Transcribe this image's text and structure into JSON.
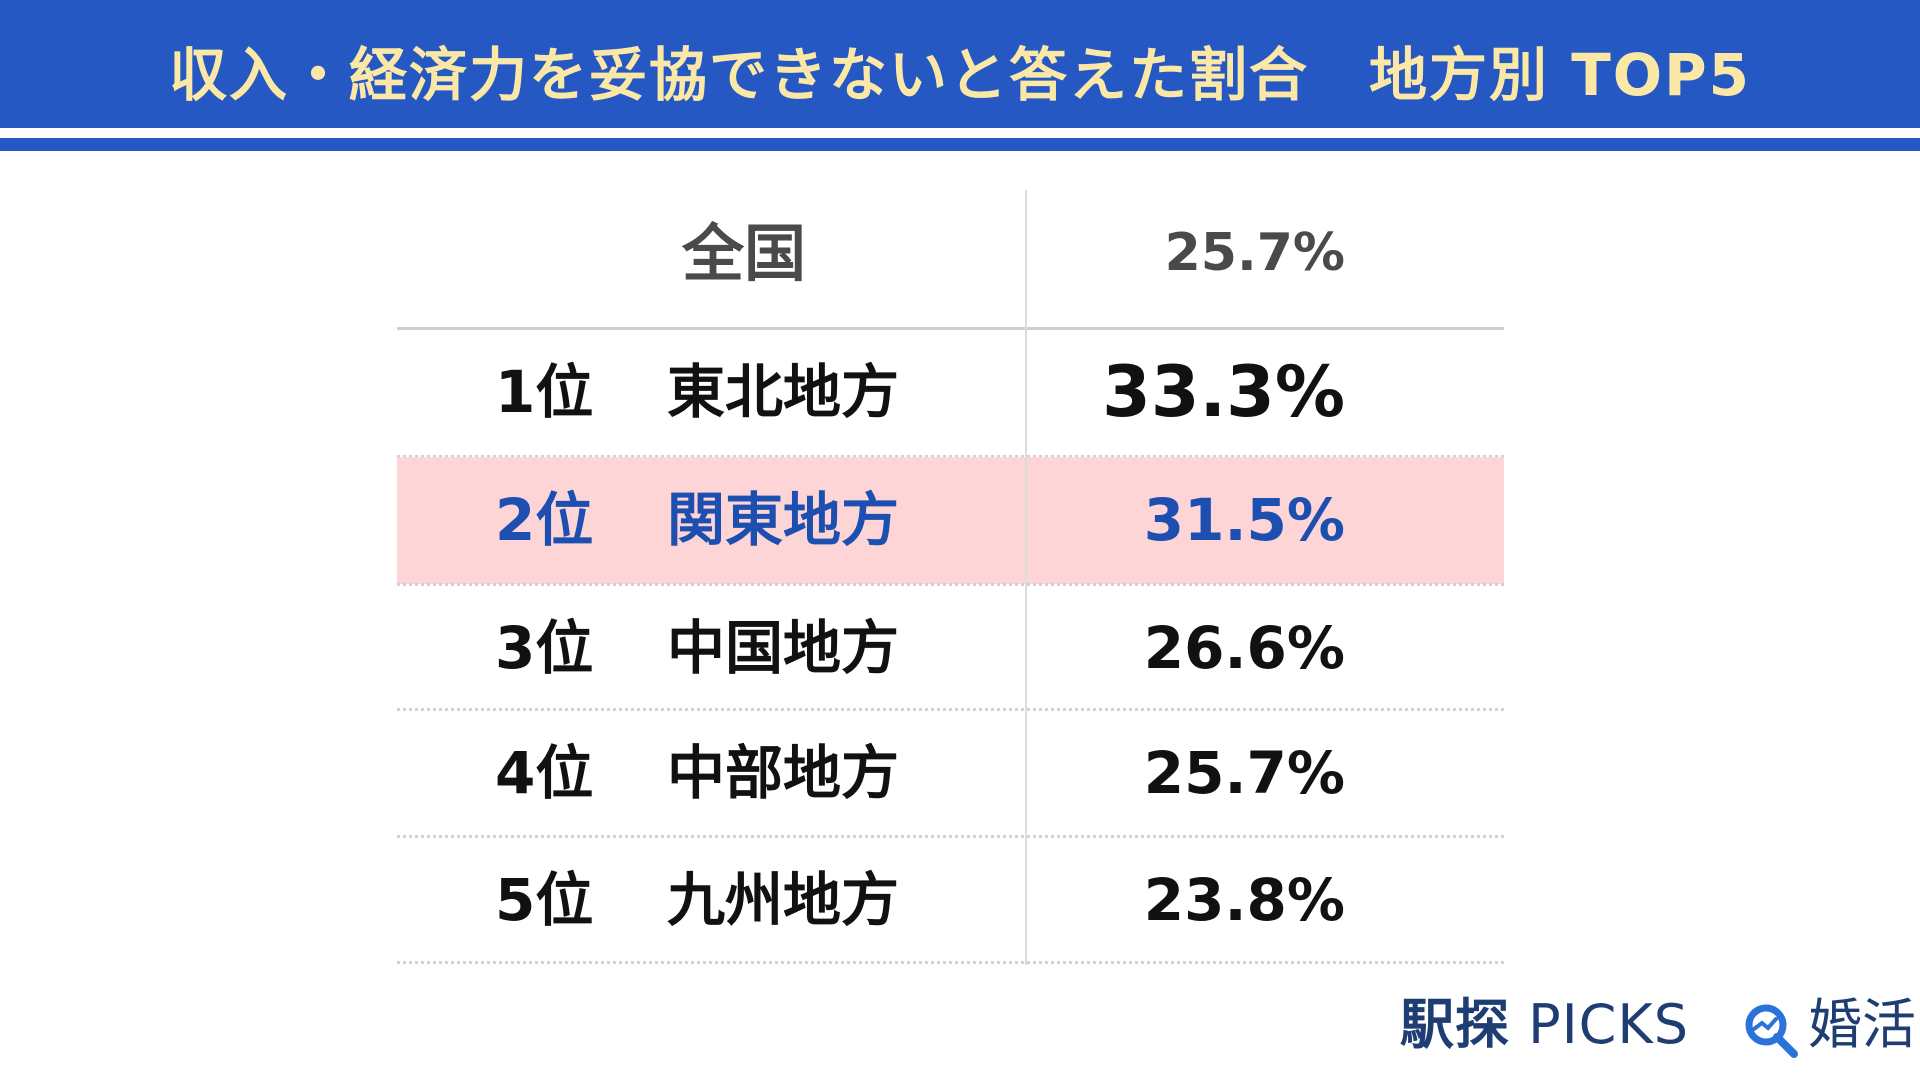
{
  "header": {
    "title": "収入・経済力を妥協できないと答えた割合　地方別 TOP5"
  },
  "chart_data": {
    "type": "table",
    "title": "収入・経済力を妥協できないと答えた割合　地方別 TOP5",
    "national": {
      "label": "全国",
      "value": "25.7%"
    },
    "rows": [
      {
        "rank": "1位",
        "region": "東北地方",
        "value": "33.3%"
      },
      {
        "rank": "2位",
        "region": "関東地方",
        "value": "31.5%"
      },
      {
        "rank": "3位",
        "region": "中国地方",
        "value": "26.6%"
      },
      {
        "rank": "4位",
        "region": "中部地方",
        "value": "25.7%"
      },
      {
        "rank": "5位",
        "region": "九州地方",
        "value": "23.8%"
      }
    ],
    "highlight_rank": "2位"
  },
  "logo": {
    "brand_jp": "駅探",
    "brand_en": "PICKS",
    "suffix": "婚活"
  },
  "colors": {
    "header_bg": "#2558c2",
    "title_text": "#fbe8a6",
    "highlight_bg": "#fdd5d6",
    "highlight_text": "#1d4fb0",
    "logo": "#1e3d73"
  }
}
